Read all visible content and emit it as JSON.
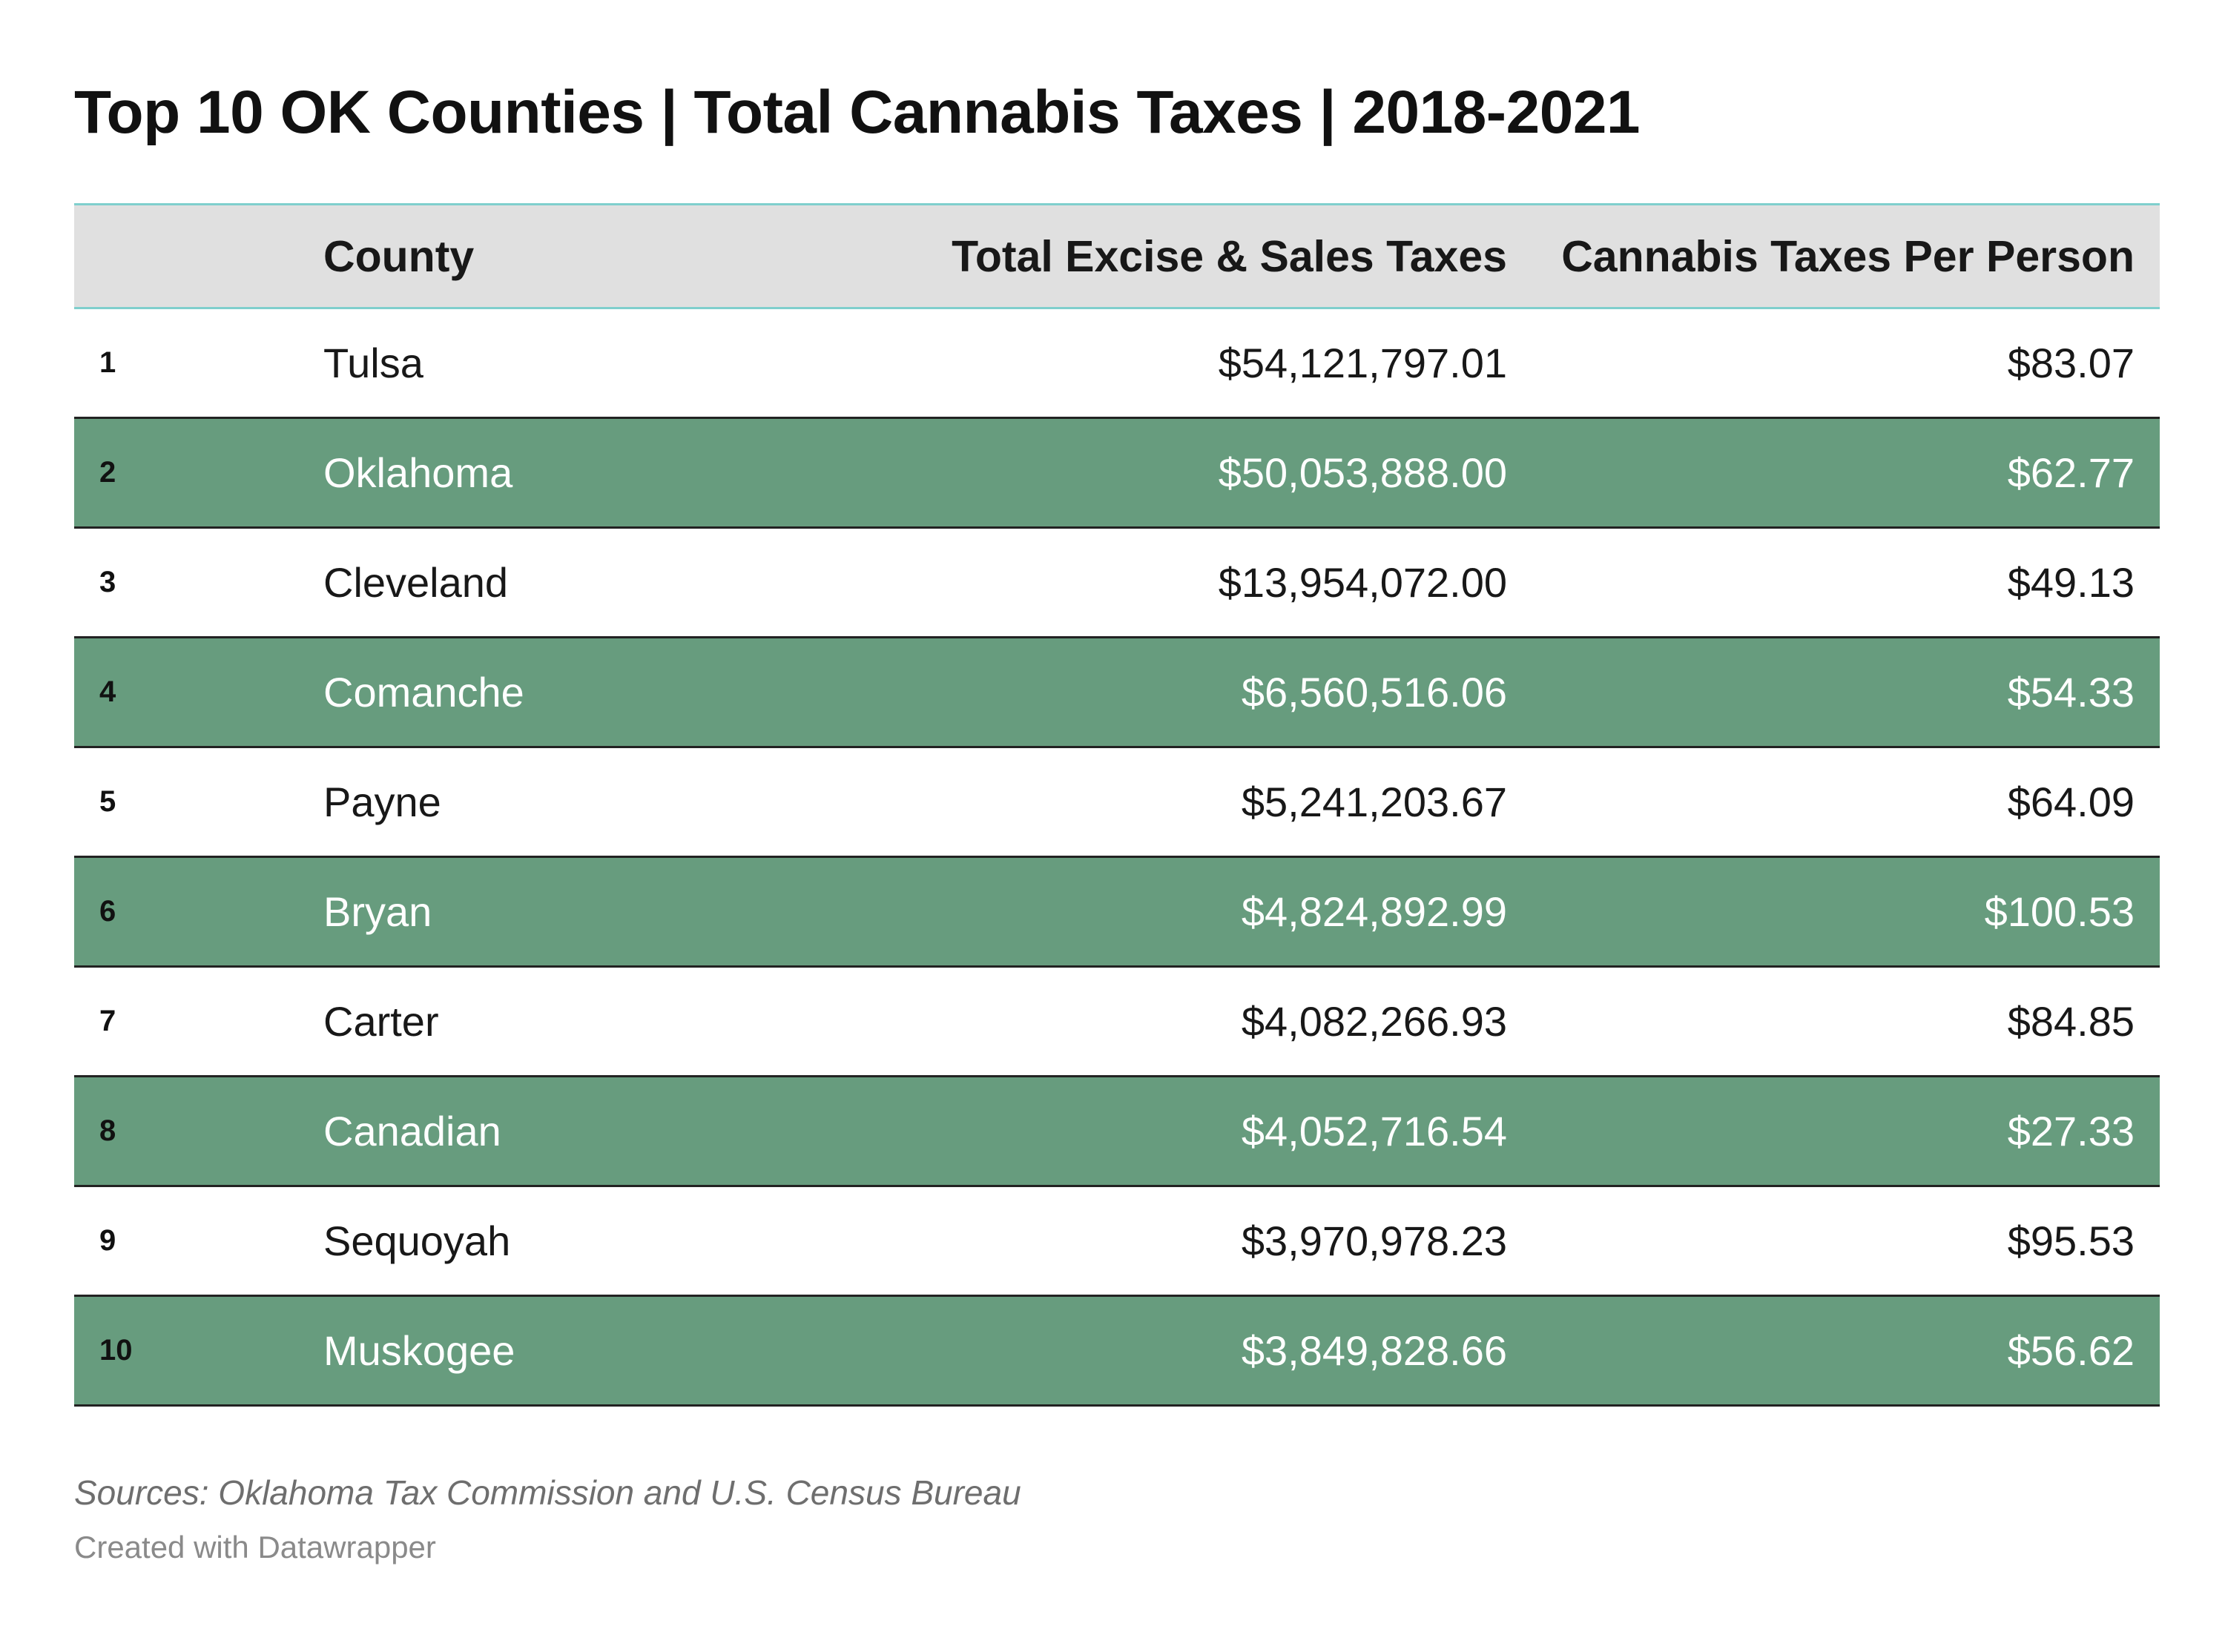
{
  "title": "Top 10 OK Counties | Total Cannabis Taxes | 2018-2021",
  "chart_data": {
    "type": "table",
    "columns": [
      "",
      "County",
      "Total Excise & Sales Taxes",
      "Cannabis Taxes Per Person"
    ],
    "rows": [
      {
        "rank": "1",
        "county": "Tulsa",
        "total": "$54,121,797.01",
        "per_person": "$83.07"
      },
      {
        "rank": "2",
        "county": "Oklahoma",
        "total": "$50,053,888.00",
        "per_person": "$62.77"
      },
      {
        "rank": "3",
        "county": "Cleveland",
        "total": "$13,954,072.00",
        "per_person": "$49.13"
      },
      {
        "rank": "4",
        "county": "Comanche",
        "total": "$6,560,516.06",
        "per_person": "$54.33"
      },
      {
        "rank": "5",
        "county": "Payne",
        "total": "$5,241,203.67",
        "per_person": "$64.09"
      },
      {
        "rank": "6",
        "county": "Bryan",
        "total": "$4,824,892.99",
        "per_person": "$100.53"
      },
      {
        "rank": "7",
        "county": "Carter",
        "total": "$4,082,266.93",
        "per_person": "$84.85"
      },
      {
        "rank": "8",
        "county": "Canadian",
        "total": "$4,052,716.54",
        "per_person": "$27.33"
      },
      {
        "rank": "9",
        "county": "Sequoyah",
        "total": "$3,970,978.23",
        "per_person": "$95.53"
      },
      {
        "rank": "10",
        "county": "Muskogee",
        "total": "$3,849,828.66",
        "per_person": "$56.62"
      }
    ]
  },
  "colors": {
    "header_background": "#e0e0e0",
    "header_rule": "#7fcfcd",
    "highlight_row": "#679c7e",
    "highlight_text": "#ffffff",
    "row_rule": "#222222"
  },
  "footer": {
    "sources": "Sources: Oklahoma Tax Commission and U.S. Census Bureau",
    "credit": "Created with Datawrapper"
  }
}
